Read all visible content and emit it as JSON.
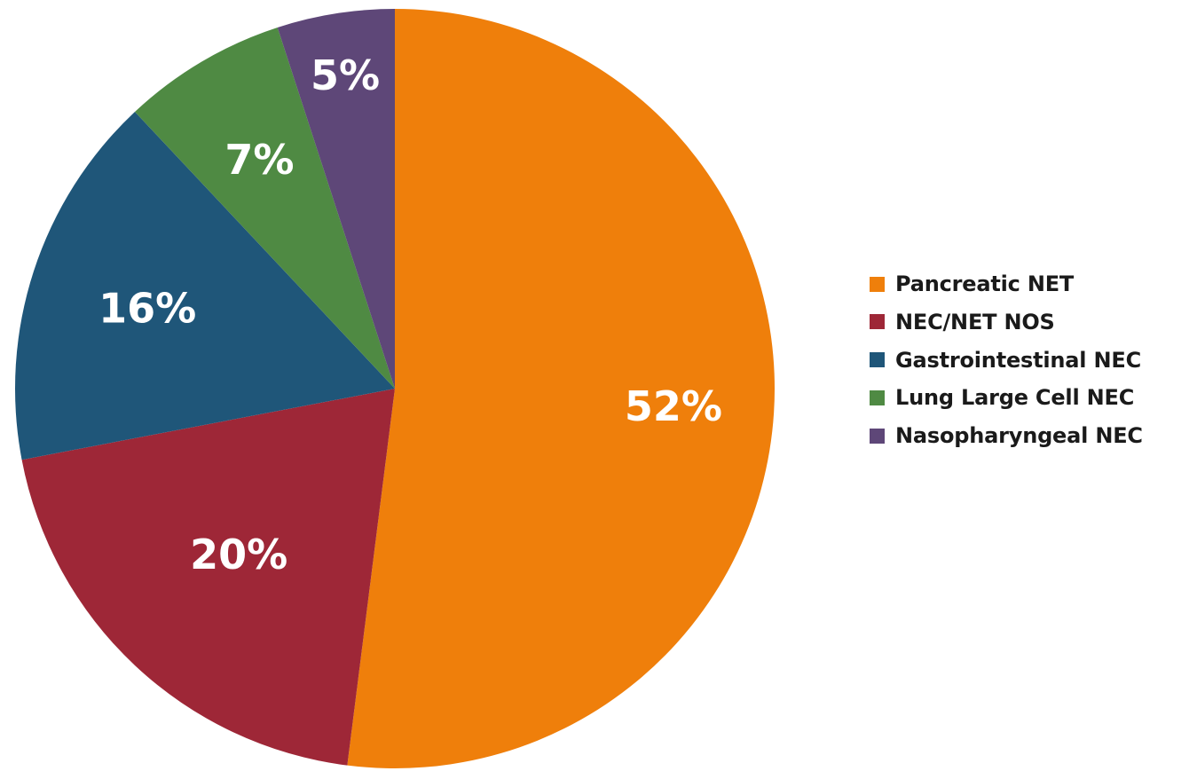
{
  "chart_data": {
    "type": "pie",
    "title": "",
    "slices": [
      {
        "label": "Pancreatic NET",
        "value": 52,
        "display": "52%",
        "color": "#EF7F0B"
      },
      {
        "label": "NEC/NET NOS",
        "value": 20,
        "display": "20%",
        "color": "#9E2737"
      },
      {
        "label": "Gastrointestinal NEC",
        "value": 16,
        "display": "16%",
        "color": "#1F5679"
      },
      {
        "label": "Lung Large Cell NEC",
        "value": 7,
        "display": "7%",
        "color": "#4F8A43"
      },
      {
        "label": "Nasopharyngeal NEC",
        "value": 5,
        "display": "5%",
        "color": "#5E4778"
      }
    ],
    "start_position": "12 o'clock",
    "direction": "clockwise",
    "legend_position": "right"
  }
}
